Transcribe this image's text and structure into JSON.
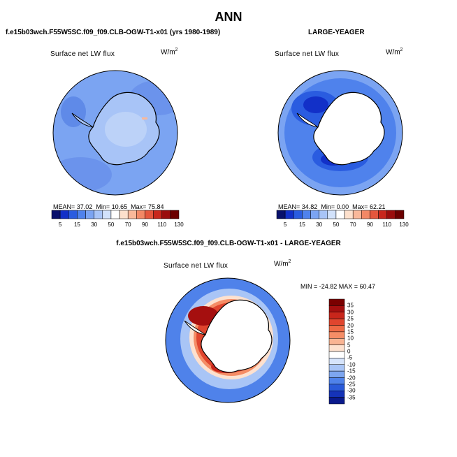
{
  "title": "ANN",
  "panels": [
    {
      "case": "f.e15b03wch.F55W5SC.f09_f09.CLB-OGW-T1-x01 (yrs 1980-1989)",
      "variable": "Surface net LW flux",
      "units_base": "W/m",
      "units_exp": "2",
      "stats": {
        "mean_label": "MEAN=",
        "mean": "37.02",
        "min_label": "Min=",
        "min": "10.65",
        "max_label": "Max=",
        "max": "75.84"
      },
      "colorbar_ticks": [
        "5",
        "15",
        "30",
        "50",
        "70",
        "90",
        "110",
        "130"
      ]
    },
    {
      "case": "LARGE-YEAGER",
      "variable": "Surface net LW flux",
      "units_base": "W/m",
      "units_exp": "2",
      "stats": {
        "mean_label": "MEAN=",
        "mean": "34.82",
        "min_label": "Min=",
        "min": "0.00",
        "max_label": "Max=",
        "max": "62.21"
      },
      "colorbar_ticks": [
        "5",
        "15",
        "30",
        "50",
        "70",
        "90",
        "110",
        "130"
      ]
    }
  ],
  "difference": {
    "title": "f.e15b03wch.F55W5SC.f09_f09.CLB-OGW-T1-x01 - LARGE-YEAGER",
    "variable": "Surface net LW flux",
    "units_base": "W/m",
    "units_exp": "2",
    "stats_text": "MIN = -24.82 MAX =  60.47",
    "colorbar_ticks": [
      "35",
      "30",
      "25",
      "20",
      "15",
      "10",
      "5",
      "0",
      "-5",
      "-10",
      "-15",
      "-20",
      "-25",
      "-30",
      "-35"
    ]
  },
  "colors": {
    "abs_scale": [
      "#08106b",
      "#1230c8",
      "#2a5ce0",
      "#4f82ec",
      "#7ba4f2",
      "#a8c4f7",
      "#d2e2fb",
      "#ffffff",
      "#fde0cc",
      "#f9b89a",
      "#f28866",
      "#e4563d",
      "#c8271d",
      "#9a0d0d",
      "#6b0000"
    ],
    "diff_scale": [
      "#7a0000",
      "#a50f0f",
      "#c8261b",
      "#e0452e",
      "#ef6a45",
      "#f58d66",
      "#f9b493",
      "#fde1cf",
      "#ffffff",
      "#d6e4fb",
      "#a9c5f6",
      "#7da6f0",
      "#4f82ea",
      "#2a5ad9",
      "#1533b8",
      "#0a1a8c"
    ]
  }
}
